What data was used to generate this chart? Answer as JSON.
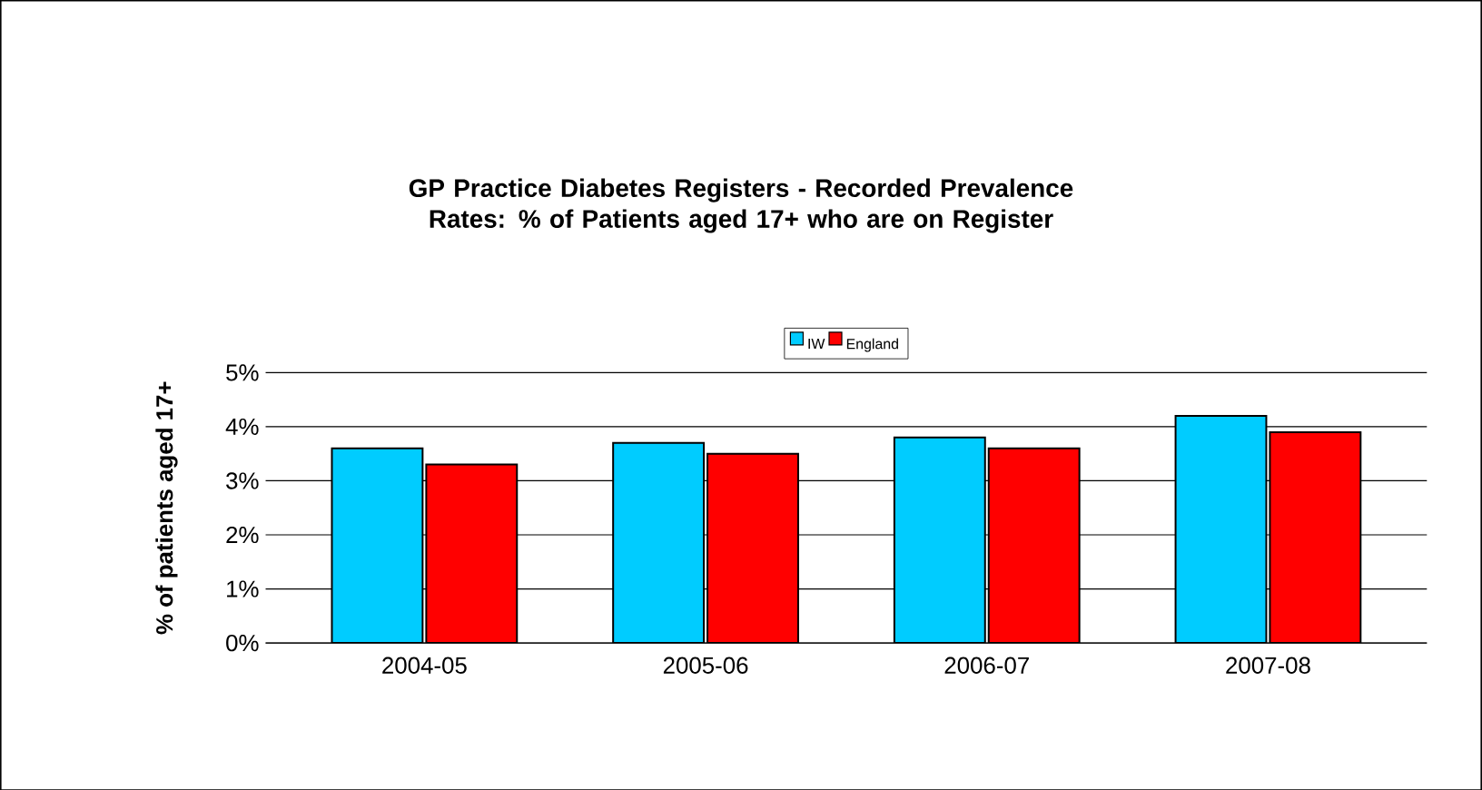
{
  "chart_data": {
    "type": "bar",
    "title": "GP Practice Diabetes Registers - Recorded Prevalence Rates: % of Patients aged 17+ who are on Register",
    "ylabel": "% of patients aged 17+",
    "categories": [
      "2004-05",
      "2005-06",
      "2006-07",
      "2007-08"
    ],
    "series": [
      {
        "name": "IW",
        "color": "#00ccff",
        "values": [
          3.6,
          3.7,
          3.8,
          4.2
        ]
      },
      {
        "name": "England",
        "color": "#ff0000",
        "values": [
          3.3,
          3.5,
          3.6,
          3.9
        ]
      }
    ],
    "ylim": [
      0,
      5
    ],
    "yticks": [
      {
        "value": 0,
        "label": "0%"
      },
      {
        "value": 1,
        "label": "1%"
      },
      {
        "value": 2,
        "label": "2%"
      },
      {
        "value": 3,
        "label": "3%"
      },
      {
        "value": 4,
        "label": "4%"
      },
      {
        "value": 5,
        "label": "5%"
      }
    ],
    "grid": "y",
    "legend": "top"
  }
}
